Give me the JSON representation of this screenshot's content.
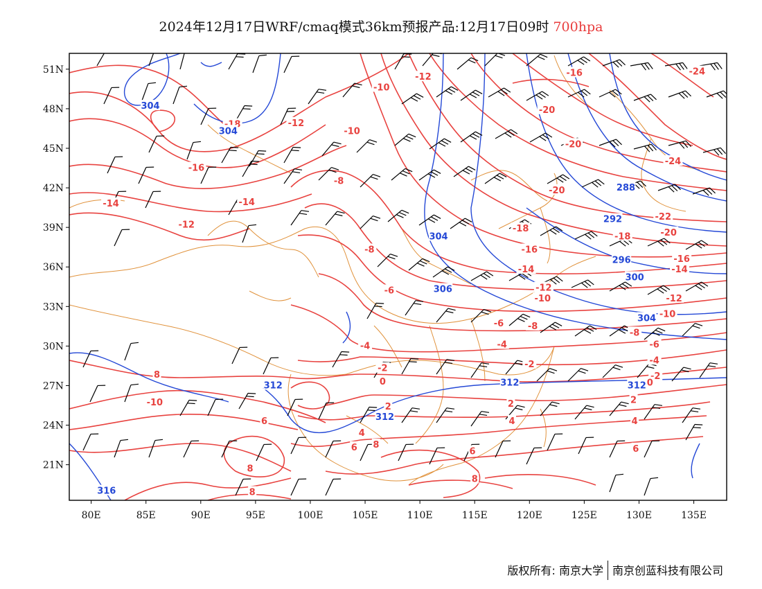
{
  "title": {
    "main": "2024年12月17日WRF/cmaq模式36km预报产品:12月17日09时",
    "level": "700hpa"
  },
  "axes": {
    "lat_labels": [
      "51N",
      "48N",
      "45N",
      "42N",
      "39N",
      "36N",
      "33N",
      "30N",
      "27N",
      "24N",
      "21N"
    ],
    "lat_values": [
      51,
      48,
      45,
      42,
      39,
      36,
      33,
      30,
      27,
      24,
      21
    ],
    "lon_labels": [
      "80E",
      "85E",
      "90E",
      "95E",
      "100E",
      "105E",
      "110E",
      "115E",
      "120E",
      "125E",
      "130E",
      "135E"
    ],
    "lon_values": [
      80,
      85,
      90,
      95,
      100,
      105,
      110,
      115,
      120,
      125,
      130,
      135
    ],
    "lon_range": [
      78,
      138
    ],
    "lat_range": [
      18.3,
      52.2
    ]
  },
  "colors": {
    "temperature": "#e8423f",
    "height": "#2448d6",
    "boundary": "#e0913a",
    "wind": "#000000"
  },
  "temperature_labels": [
    {
      "text": "-12",
      "lon": 110.3,
      "lat": 50.4
    },
    {
      "text": "-10",
      "lon": 106.5,
      "lat": 49.6
    },
    {
      "text": "-18",
      "lon": 92.9,
      "lat": 46.8
    },
    {
      "text": "-12",
      "lon": 98.7,
      "lat": 46.9
    },
    {
      "text": "-10",
      "lon": 103.8,
      "lat": 46.3
    },
    {
      "text": "-16",
      "lon": 89.6,
      "lat": 43.5
    },
    {
      "text": "-8",
      "lon": 102.6,
      "lat": 42.5
    },
    {
      "text": "-14",
      "lon": 81.8,
      "lat": 40.8
    },
    {
      "text": "-14",
      "lon": 94.2,
      "lat": 40.9
    },
    {
      "text": "-12",
      "lon": 88.7,
      "lat": 39.2
    },
    {
      "text": "-8",
      "lon": 105.4,
      "lat": 37.3
    },
    {
      "text": "-6",
      "lon": 107.2,
      "lat": 34.2
    },
    {
      "text": "-4",
      "lon": 105.0,
      "lat": 30.0
    },
    {
      "text": "-2",
      "lon": 106.6,
      "lat": 28.3
    },
    {
      "text": "0",
      "lon": 106.6,
      "lat": 27.3
    },
    {
      "text": "2",
      "lon": 107.1,
      "lat": 25.4
    },
    {
      "text": "4",
      "lon": 104.7,
      "lat": 23.4
    },
    {
      "text": "6",
      "lon": 104.0,
      "lat": 22.3
    },
    {
      "text": "8",
      "lon": 106.0,
      "lat": 22.5
    },
    {
      "text": "8",
      "lon": 86.0,
      "lat": 27.8
    },
    {
      "text": "-10",
      "lon": 85.8,
      "lat": 25.7
    },
    {
      "text": "6",
      "lon": 95.8,
      "lat": 24.3
    },
    {
      "text": "8",
      "lon": 94.5,
      "lat": 20.7
    },
    {
      "text": "8",
      "lon": 94.7,
      "lat": 18.9
    },
    {
      "text": "6",
      "lon": 114.8,
      "lat": 22.0
    },
    {
      "text": "8",
      "lon": 115.0,
      "lat": 19.9
    },
    {
      "text": "4",
      "lon": 118.4,
      "lat": 24.3
    },
    {
      "text": "2",
      "lon": 118.3,
      "lat": 25.6
    },
    {
      "text": "-2",
      "lon": 120.0,
      "lat": 28.6
    },
    {
      "text": "-4",
      "lon": 117.5,
      "lat": 30.1
    },
    {
      "text": "-6",
      "lon": 117.2,
      "lat": 31.7
    },
    {
      "text": "-8",
      "lon": 120.3,
      "lat": 31.5
    },
    {
      "text": "-10",
      "lon": 121.2,
      "lat": 33.6
    },
    {
      "text": "-12",
      "lon": 121.3,
      "lat": 34.4
    },
    {
      "text": "-14",
      "lon": 119.7,
      "lat": 35.8
    },
    {
      "text": "-16",
      "lon": 120.0,
      "lat": 37.3
    },
    {
      "text": "-18",
      "lon": 119.2,
      "lat": 38.9
    },
    {
      "text": "-20",
      "lon": 122.5,
      "lat": 41.8
    },
    {
      "text": "-20",
      "lon": 124.0,
      "lat": 45.3
    },
    {
      "text": "-20",
      "lon": 121.6,
      "lat": 47.9
    },
    {
      "text": "-16",
      "lon": 124.1,
      "lat": 50.7
    },
    {
      "text": "-24",
      "lon": 135.3,
      "lat": 50.8
    },
    {
      "text": "-24",
      "lon": 133.1,
      "lat": 44.0
    },
    {
      "text": "-22",
      "lon": 132.2,
      "lat": 39.8
    },
    {
      "text": "-20",
      "lon": 132.7,
      "lat": 38.6
    },
    {
      "text": "-18",
      "lon": 128.5,
      "lat": 38.3
    },
    {
      "text": "-16",
      "lon": 133.9,
      "lat": 36.6
    },
    {
      "text": "-14",
      "lon": 133.7,
      "lat": 35.8
    },
    {
      "text": "-12",
      "lon": 133.2,
      "lat": 33.6
    },
    {
      "text": "-10",
      "lon": 132.6,
      "lat": 32.4
    },
    {
      "text": "-8",
      "lon": 129.6,
      "lat": 31.0
    },
    {
      "text": "-6",
      "lon": 131.4,
      "lat": 30.1
    },
    {
      "text": "-4",
      "lon": 131.4,
      "lat": 28.9
    },
    {
      "text": "-2",
      "lon": 131.5,
      "lat": 27.7
    },
    {
      "text": "0",
      "lon": 131.0,
      "lat": 27.2
    },
    {
      "text": "2",
      "lon": 129.5,
      "lat": 25.9
    },
    {
      "text": "4",
      "lon": 129.6,
      "lat": 24.3
    },
    {
      "text": "6",
      "lon": 129.7,
      "lat": 22.2
    }
  ],
  "height_labels": [
    {
      "text": "304",
      "lon": 85.4,
      "lat": 48.2
    },
    {
      "text": "304",
      "lon": 92.5,
      "lat": 46.3
    },
    {
      "text": "304",
      "lon": 111.7,
      "lat": 38.3
    },
    {
      "text": "306",
      "lon": 112.1,
      "lat": 34.3
    },
    {
      "text": "288",
      "lon": 128.8,
      "lat": 42.0
    },
    {
      "text": "292",
      "lon": 127.6,
      "lat": 39.6
    },
    {
      "text": "296",
      "lon": 128.4,
      "lat": 36.5
    },
    {
      "text": "300",
      "lon": 129.6,
      "lat": 35.2
    },
    {
      "text": "304",
      "lon": 130.7,
      "lat": 32.1
    },
    {
      "text": "312",
      "lon": 96.6,
      "lat": 27.0
    },
    {
      "text": "312",
      "lon": 106.8,
      "lat": 24.6
    },
    {
      "text": "312",
      "lon": 118.2,
      "lat": 27.2
    },
    {
      "text": "312",
      "lon": 129.8,
      "lat": 27.0
    },
    {
      "text": "316",
      "lon": 81.4,
      "lat": 19.0
    }
  ],
  "copyright": {
    "left": "版权所有: 南京大学",
    "right": "南京创蓝科技有限公司"
  }
}
